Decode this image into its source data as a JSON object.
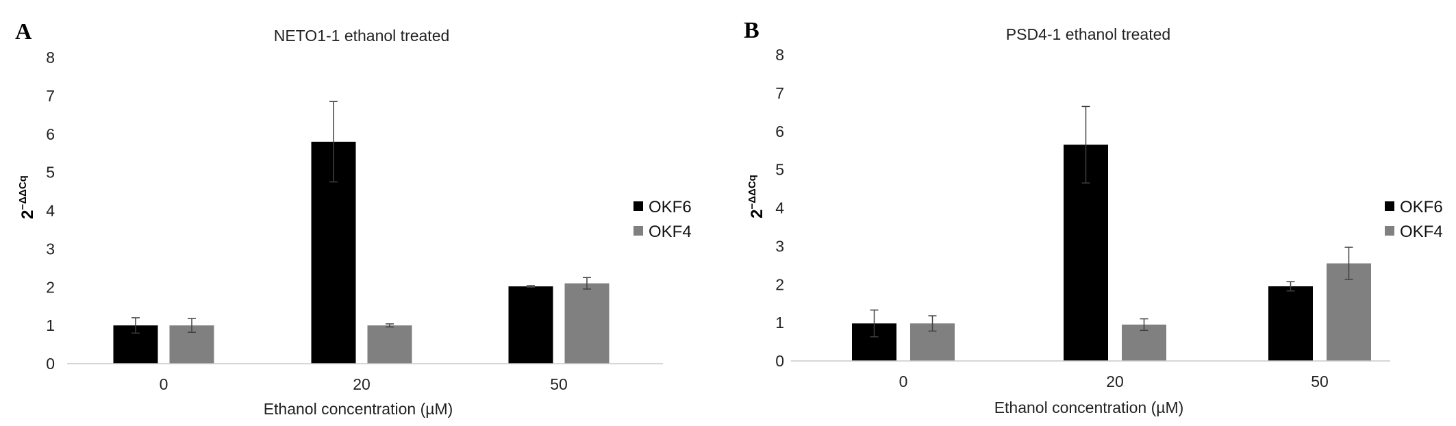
{
  "figure": {
    "panels": [
      "A",
      "B"
    ]
  },
  "colors": {
    "OKF6": "#000000",
    "OKF4": "#808080",
    "axis": "#c8c8c8",
    "error_bar": "#404040",
    "text": "#222222"
  },
  "chart_data": [
    {
      "type": "bar",
      "panel": "A",
      "title": "NETO1-1 ethanol treated",
      "xlabel": "Ethanol concentration (µM)",
      "ylabel": "2−ΔΔCq",
      "categories": [
        "0",
        "20",
        "50"
      ],
      "series": [
        {
          "name": "OKF6",
          "values": [
            1.0,
            5.8,
            2.02
          ],
          "errors": [
            0.2,
            1.05,
            0.02
          ]
        },
        {
          "name": "OKF4",
          "values": [
            1.0,
            1.0,
            2.1
          ],
          "errors": [
            0.18,
            0.04,
            0.15
          ]
        }
      ],
      "ylim": [
        0,
        8
      ],
      "yticks": [
        0,
        1,
        2,
        3,
        4,
        5,
        6,
        7,
        8
      ],
      "grid": false,
      "legend": "right"
    },
    {
      "type": "bar",
      "panel": "B",
      "title": "PSD4-1 ethanol treated",
      "xlabel": "Ethanol concentration (µM)",
      "ylabel": "2−ΔΔCq",
      "categories": [
        "0",
        "20",
        "50"
      ],
      "series": [
        {
          "name": "OKF6",
          "values": [
            0.98,
            5.65,
            1.95
          ],
          "errors": [
            0.35,
            1.0,
            0.12
          ]
        },
        {
          "name": "OKF4",
          "values": [
            0.98,
            0.95,
            2.55
          ],
          "errors": [
            0.2,
            0.15,
            0.42
          ]
        }
      ],
      "ylim": [
        0,
        8
      ],
      "yticks": [
        0,
        1,
        2,
        3,
        4,
        5,
        6,
        7,
        8
      ],
      "grid": false,
      "legend": "right"
    }
  ]
}
